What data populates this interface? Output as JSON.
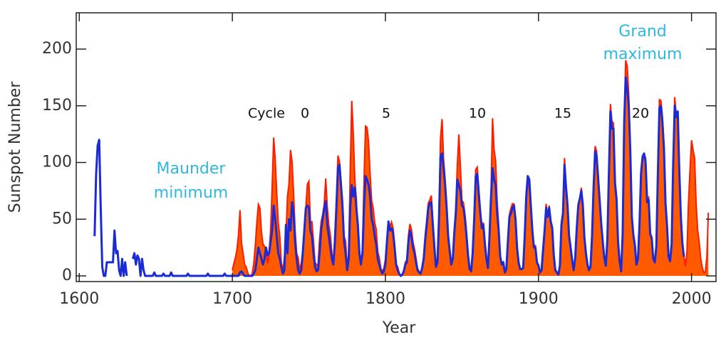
{
  "chart_data": {
    "type": "line",
    "xlabel": "Year",
    "ylabel": "Sunspot Number",
    "xlim": [
      1598,
      2016
    ],
    "ylim": [
      -5,
      232
    ],
    "xticks": [
      1600,
      1700,
      1800,
      1900,
      2000
    ],
    "yticks": [
      0,
      50,
      100,
      150,
      200
    ],
    "annotations": [
      {
        "lines": [
          "Maunder",
          "minimum"
        ],
        "color": "#2fb7df"
      },
      {
        "lines": [
          "Grand",
          "maximum"
        ],
        "color": "#2fb7df"
      }
    ],
    "cycle_labels": {
      "prefix": "Cycle",
      "numbers": [
        0,
        5,
        10,
        15,
        20
      ]
    },
    "x": [
      1610,
      1611,
      1612,
      1613,
      1614,
      1615,
      1616,
      1617,
      1618,
      1619,
      1620,
      1621,
      1622,
      1623,
      1624,
      1625,
      1626,
      1627,
      1628,
      1629,
      1630,
      1631,
      1632,
      1633,
      1634,
      1635,
      1636,
      1637,
      1638,
      1639,
      1640,
      1641,
      1642,
      1643,
      1644,
      1645,
      1646,
      1647,
      1648,
      1649,
      1650,
      1651,
      1652,
      1653,
      1654,
      1655,
      1656,
      1657,
      1658,
      1659,
      1660,
      1661,
      1662,
      1663,
      1664,
      1665,
      1666,
      1667,
      1668,
      1669,
      1670,
      1671,
      1672,
      1673,
      1674,
      1675,
      1676,
      1677,
      1678,
      1679,
      1680,
      1681,
      1682,
      1683,
      1684,
      1685,
      1686,
      1687,
      1688,
      1689,
      1690,
      1691,
      1692,
      1693,
      1694,
      1695,
      1696,
      1697,
      1698,
      1699,
      1700,
      1701,
      1702,
      1703,
      1704,
      1705,
      1706,
      1707,
      1708,
      1709,
      1710,
      1711,
      1712,
      1713,
      1714,
      1715,
      1716,
      1717,
      1718,
      1719,
      1720,
      1721,
      1722,
      1723,
      1724,
      1725,
      1726,
      1727,
      1728,
      1729,
      1730,
      1731,
      1732,
      1733,
      1734,
      1735,
      1736,
      1737,
      1738,
      1739,
      1740,
      1741,
      1742,
      1743,
      1744,
      1745,
      1746,
      1747,
      1748,
      1749,
      1750,
      1751,
      1752,
      1753,
      1754,
      1755,
      1756,
      1757,
      1758,
      1759,
      1760,
      1761,
      1762,
      1763,
      1764,
      1765,
      1766,
      1767,
      1768,
      1769,
      1770,
      1771,
      1772,
      1773,
      1774,
      1775,
      1776,
      1777,
      1778,
      1779,
      1780,
      1781,
      1782,
      1783,
      1784,
      1785,
      1786,
      1787,
      1788,
      1789,
      1790,
      1791,
      1792,
      1793,
      1794,
      1795,
      1796,
      1797,
      1798,
      1799,
      1800,
      1801,
      1802,
      1803,
      1804,
      1805,
      1806,
      1807,
      1808,
      1809,
      1810,
      1811,
      1812,
      1813,
      1814,
      1815,
      1816,
      1817,
      1818,
      1819,
      1820,
      1821,
      1822,
      1823,
      1824,
      1825,
      1826,
      1827,
      1828,
      1829,
      1830,
      1831,
      1832,
      1833,
      1834,
      1835,
      1836,
      1837,
      1838,
      1839,
      1840,
      1841,
      1842,
      1843,
      1844,
      1845,
      1846,
      1847,
      1848,
      1849,
      1850,
      1851,
      1852,
      1853,
      1854,
      1855,
      1856,
      1857,
      1858,
      1859,
      1860,
      1861,
      1862,
      1863,
      1864,
      1865,
      1866,
      1867,
      1868,
      1869,
      1870,
      1871,
      1872,
      1873,
      1874,
      1875,
      1876,
      1877,
      1878,
      1879,
      1880,
      1881,
      1882,
      1883,
      1884,
      1885,
      1886,
      1887,
      1888,
      1889,
      1890,
      1891,
      1892,
      1893,
      1894,
      1895,
      1896,
      1897,
      1898,
      1899,
      1900,
      1901,
      1902,
      1903,
      1904,
      1905,
      1906,
      1907,
      1908,
      1909,
      1910,
      1911,
      1912,
      1913,
      1914,
      1915,
      1916,
      1917,
      1918,
      1919,
      1920,
      1921,
      1922,
      1923,
      1924,
      1925,
      1926,
      1927,
      1928,
      1929,
      1930,
      1931,
      1932,
      1933,
      1934,
      1935,
      1936,
      1937,
      1938,
      1939,
      1940,
      1941,
      1942,
      1943,
      1944,
      1945,
      1946,
      1947,
      1948,
      1949,
      1950,
      1951,
      1952,
      1953,
      1954,
      1955,
      1956,
      1957,
      1958,
      1959,
      1960,
      1961,
      1962,
      1963,
      1964,
      1965,
      1966,
      1967,
      1968,
      1969,
      1970,
      1971,
      1972,
      1973,
      1974,
      1975,
      1976,
      1977,
      1978,
      1979,
      1980,
      1981,
      1982,
      1983,
      1984,
      1985,
      1986,
      1987,
      1988,
      1989,
      1990,
      1991,
      1992,
      1993,
      1994,
      1995,
      1996,
      1997,
      1998,
      1999,
      2000,
      2001,
      2002,
      2003,
      2004,
      2005,
      2006,
      2007,
      2008,
      2009,
      2010,
      2011
    ],
    "series": [
      {
        "color": "#ff1a00",
        "fill": "#ff5a00",
        "style": "area",
        "values": [
          null,
          null,
          null,
          null,
          null,
          null,
          null,
          null,
          null,
          null,
          null,
          null,
          null,
          null,
          null,
          null,
          null,
          null,
          null,
          null,
          null,
          null,
          null,
          null,
          null,
          null,
          null,
          null,
          null,
          null,
          null,
          null,
          null,
          null,
          null,
          null,
          null,
          null,
          null,
          null,
          null,
          null,
          null,
          null,
          null,
          null,
          null,
          null,
          null,
          null,
          null,
          null,
          null,
          null,
          null,
          null,
          null,
          null,
          null,
          null,
          null,
          null,
          null,
          null,
          null,
          null,
          null,
          null,
          null,
          null,
          null,
          null,
          null,
          null,
          null,
          null,
          null,
          null,
          null,
          null,
          null,
          null,
          null,
          null,
          null,
          null,
          null,
          null,
          null,
          null,
          5,
          11,
          16,
          23,
          36,
          58,
          29,
          20,
          10,
          8,
          3,
          0,
          0,
          2,
          11,
          27,
          47,
          63,
          60,
          39,
          28,
          26,
          22,
          11,
          21,
          40,
          78,
          122,
          103,
          73,
          47,
          35,
          11,
          5,
          16,
          34,
          70,
          81,
          111,
          101,
          73,
          40,
          20,
          16,
          5,
          11,
          22,
          40,
          60,
          80.9,
          83.4,
          47.7,
          47.8,
          30.7,
          12.2,
          9.6,
          10.2,
          32.4,
          47.6,
          54,
          62.9,
          85.9,
          61.2,
          45.1,
          36.4,
          20.9,
          11.4,
          37.8,
          69.8,
          106.1,
          100.8,
          81.6,
          66.5,
          34.8,
          30.6,
          7,
          19.8,
          92.5,
          154.4,
          125.9,
          84.8,
          68.1,
          38.5,
          22.8,
          10.2,
          24.1,
          82.9,
          132,
          130.9,
          118.1,
          89.9,
          66.6,
          60,
          46.9,
          41,
          21.3,
          16,
          6.4,
          4.1,
          6.8,
          14.5,
          34,
          45,
          43.1,
          47.5,
          42.2,
          28.1,
          10.1,
          8.1,
          2.5,
          0,
          1.4,
          5,
          12.2,
          13.9,
          35.4,
          45.8,
          41.1,
          30.1,
          23.9,
          15.6,
          6.6,
          4,
          1.8,
          8.5,
          16.6,
          36.3,
          49.6,
          64.2,
          67,
          70.9,
          47.8,
          27.5,
          8.5,
          13.2,
          56.9,
          121.5,
          138.3,
          103.2,
          85.7,
          64.6,
          36.7,
          24.2,
          10.7,
          15,
          40.1,
          61.5,
          98.5,
          124.7,
          96.3,
          66.6,
          64.5,
          54.1,
          39,
          20.6,
          6.7,
          4.3,
          22.7,
          54.8,
          93.8,
          95.8,
          77.2,
          59.1,
          44,
          47,
          30.5,
          16.3,
          7.3,
          37.6,
          74,
          139,
          111.2,
          101.6,
          66.2,
          44.7,
          17,
          11.3,
          12.4,
          3.4,
          6,
          32.3,
          54.3,
          59.7,
          63.7,
          63.5,
          52.2,
          25.4,
          13.1,
          6.8,
          6.3,
          7.1,
          35.6,
          73,
          85.1,
          78,
          64,
          41.8,
          26.2,
          26.7,
          12.1,
          9.5,
          2.7,
          5,
          24.4,
          42,
          63.5,
          53.8,
          62,
          48.5,
          43.9,
          18.6,
          5.7,
          3.6,
          1.4,
          9.6,
          47.4,
          57.1,
          103.9,
          80.6,
          63.6,
          37.6,
          26.1,
          14.2,
          5.8,
          16.7,
          44.3,
          63.9,
          69,
          77.8,
          64.9,
          35.7,
          21.2,
          11.1,
          5.7,
          8.7,
          36.1,
          79.7,
          114.4,
          109.6,
          88.8,
          67.8,
          47.5,
          30.6,
          16.3,
          9.6,
          33.2,
          92.6,
          151.6,
          136.3,
          134.7,
          83.9,
          69.4,
          31.5,
          13.9,
          4.4,
          38,
          141.7,
          190.2,
          184.8,
          159,
          112.3,
          53.9,
          37.6,
          27.9,
          10.2,
          15.1,
          47,
          93.8,
          105.9,
          105.5,
          104.5,
          66.6,
          68.9,
          38,
          34.5,
          15.5,
          12.6,
          27.5,
          92.5,
          155.4,
          154.6,
          140.4,
          115.9,
          66.6,
          45.9,
          17.9,
          13.4,
          29.4,
          100.2,
          157.6,
          142.6,
          145.7,
          94.3,
          54.6,
          29.9,
          17.5,
          8.6,
          21.5,
          64.3,
          93.3,
          119.6,
          111,
          104,
          63.7,
          40.4,
          29.8,
          15.2,
          7.5,
          2.9,
          3.1,
          16.5,
          55.7
        ]
      },
      {
        "color": "#1a2bd6",
        "style": "line",
        "values": [
          35,
          90,
          115,
          120,
          60,
          8,
          0,
          0,
          12,
          12,
          12,
          12,
          12,
          40,
          20,
          22,
          5,
          0,
          15,
          0,
          12,
          0,
          null,
          null,
          null,
          15,
          20,
          10,
          18,
          15,
          0,
          15,
          5,
          0,
          0,
          0,
          0,
          0,
          0,
          3,
          0,
          0,
          0,
          0,
          0,
          2,
          0,
          0,
          0,
          0,
          3,
          0,
          0,
          0,
          0,
          0,
          0,
          0,
          0,
          0,
          0,
          2,
          0,
          0,
          0,
          0,
          0,
          0,
          0,
          0,
          0,
          0,
          0,
          0,
          2,
          0,
          0,
          0,
          0,
          0,
          0,
          0,
          0,
          0,
          0,
          2,
          0,
          0,
          0,
          0,
          0,
          0,
          0,
          0,
          0,
          3,
          4,
          2,
          0,
          0,
          0,
          0,
          0,
          0,
          2,
          5,
          15,
          25,
          20,
          15,
          10,
          15,
          25,
          18,
          20,
          30,
          40,
          62,
          50,
          35,
          20,
          15,
          8,
          2,
          5,
          45,
          20,
          50,
          40,
          65,
          55,
          30,
          15,
          5,
          2,
          5,
          20,
          40,
          60,
          62,
          60,
          40,
          35,
          20,
          8,
          4,
          5,
          20,
          40,
          50,
          60,
          66,
          45,
          35,
          25,
          15,
          10,
          30,
          60,
          95,
          98,
          80,
          60,
          30,
          20,
          5,
          15,
          60,
          80,
          70,
          78,
          60,
          45,
          20,
          10,
          20,
          60,
          88,
          85,
          80,
          70,
          50,
          45,
          35,
          28,
          15,
          10,
          5,
          2,
          4,
          10,
          30,
          48,
          40,
          42,
          38,
          25,
          10,
          5,
          2,
          0,
          1,
          4,
          10,
          12,
          30,
          40,
          35,
          25,
          20,
          12,
          5,
          3,
          2,
          7,
          15,
          32,
          45,
          60,
          64,
          65,
          45,
          25,
          8,
          12,
          50,
          105,
          108,
          95,
          80,
          60,
          35,
          22,
          10,
          15,
          38,
          55,
          85,
          80,
          75,
          62,
          60,
          50,
          35,
          18,
          6,
          4,
          20,
          50,
          88,
          90,
          72,
          55,
          42,
          45,
          28,
          15,
          7,
          35,
          70,
          95,
          85,
          80,
          55,
          40,
          17,
          10,
          12,
          3,
          6,
          30,
          52,
          55,
          60,
          62,
          50,
          25,
          12,
          6,
          6,
          7,
          35,
          70,
          88,
          85,
          62,
          40,
          25,
          25,
          12,
          9,
          3,
          5,
          23,
          40,
          60,
          52,
          60,
          48,
          42,
          18,
          5,
          3,
          1,
          9,
          45,
          55,
          98,
          78,
          62,
          35,
          25,
          14,
          5,
          16,
          42,
          62,
          68,
          75,
          62,
          34,
          20,
          10,
          5,
          8,
          35,
          78,
          110,
          105,
          86,
          66,
          46,
          30,
          16,
          9,
          32,
          90,
          145,
          130,
          130,
          82,
          68,
          30,
          13,
          4,
          37,
          135,
          175,
          165,
          150,
          110,
          52,
          36,
          27,
          10,
          15,
          45,
          90,
          105,
          108,
          100,
          65,
          67,
          37,
          33,
          15,
          12,
          26,
          90,
          148,
          150,
          135,
          112,
          64,
          44,
          17,
          13,
          28,
          98,
          150,
          140,
          145,
          93,
          53,
          29,
          17,
          null,
          null,
          null,
          null,
          null,
          null,
          null,
          null,
          null,
          null,
          null,
          null,
          null,
          null,
          null,
          null
        ]
      }
    ]
  }
}
